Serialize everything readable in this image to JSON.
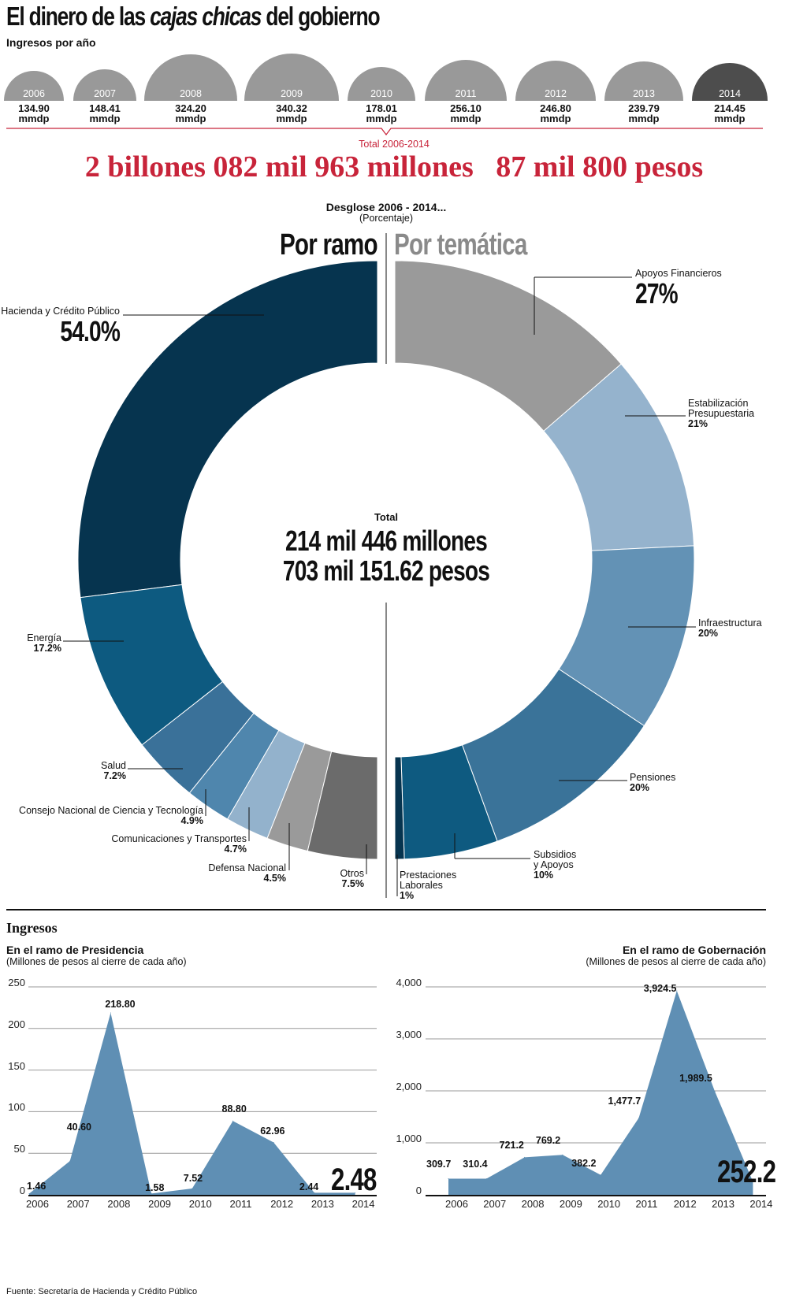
{
  "header": {
    "title_pre": "El dinero de las ",
    "title_em": "cajas chicas",
    "title_post": " del gobierno",
    "subtitle": "Ingresos por año"
  },
  "yearly": {
    "unit": "mmdp",
    "items": [
      {
        "year": "2006",
        "value": 134.9,
        "label": "134.90"
      },
      {
        "year": "2007",
        "value": 148.41,
        "label": "148.41"
      },
      {
        "year": "2008",
        "value": 324.2,
        "label": "324.20"
      },
      {
        "year": "2009",
        "value": 340.32,
        "label": "340.32"
      },
      {
        "year": "2010",
        "value": 178.01,
        "label": "178.01"
      },
      {
        "year": "2011",
        "value": 256.1,
        "label": "256.10"
      },
      {
        "year": "2012",
        "value": 246.8,
        "label": "246.80"
      },
      {
        "year": "2013",
        "value": 239.79,
        "label": "239.79"
      },
      {
        "year": "2014",
        "value": 214.45,
        "label": "214.45"
      }
    ],
    "color": "#999999",
    "highlight_color": "#4d4d4d",
    "total_label": "Total 2006-2014",
    "total_value": "2 billones 082 mil 963 millones   87 mil 800 pesos",
    "accent": "#c8243a"
  },
  "chart_data": [
    {
      "type": "pie",
      "title": "Desglose 2006 - 2014...",
      "subtitle": "(Porcentaje)",
      "left_title": "Por ramo",
      "right_title": "Por temática",
      "center": {
        "label": "Total",
        "line1": "214 mil 446 millones",
        "line2": "703 mil 151.62 pesos"
      },
      "por_ramo": [
        {
          "name": "Hacienda y Crédito Público",
          "value": 54.0,
          "label": "54.0%",
          "color": "#06344f"
        },
        {
          "name": "Energía",
          "value": 17.2,
          "label": "17.2%",
          "color": "#0d5a80"
        },
        {
          "name": "Salud",
          "value": 7.2,
          "label": "7.2%",
          "color": "#3a7199"
        },
        {
          "name": "Consejo Nacional de Ciencia y Tecnología",
          "value": 4.9,
          "label": "4.9%",
          "color": "#4f86ad"
        },
        {
          "name": "Comunicaciones y Transportes",
          "value": 4.7,
          "label": "4.7%",
          "color": "#93b2cc"
        },
        {
          "name": "Defensa Nacional",
          "value": 4.5,
          "label": "4.5%",
          "color": "#9a9a9a"
        },
        {
          "name": "Otros",
          "value": 7.5,
          "label": "7.5%",
          "color": "#6b6b6b"
        }
      ],
      "por_tematica": [
        {
          "name": "Apoyos Financieros",
          "value": 27,
          "label": "27%",
          "color": "#9a9a9a"
        },
        {
          "name": "Estabilización Presupuestaria",
          "name1": "Estabilización",
          "name2": "Presupuestaria",
          "value": 21,
          "label": "21%",
          "color": "#95b3cd"
        },
        {
          "name": "Infraestructura",
          "value": 20,
          "label": "20%",
          "color": "#6392b5"
        },
        {
          "name": "Pensiones",
          "value": 20,
          "label": "20%",
          "color": "#3a7399"
        },
        {
          "name": "Subsidios y Apoyos",
          "name1": "Subsidios",
          "name2": "y Apoyos",
          "value": 10,
          "label": "10%",
          "color": "#0e5a80"
        },
        {
          "name": "Prestaciones Laborales",
          "name1": "Prestaciones",
          "name2": "Laborales",
          "value": 1,
          "label": "1%",
          "color": "#06344f"
        }
      ]
    },
    {
      "type": "area",
      "section": "Ingresos",
      "title": "En el ramo de Presidencia",
      "subtitle": "(Millones de pesos al cierre de cada año)",
      "x": [
        "2006",
        "2007",
        "2008",
        "2009",
        "2010",
        "2011",
        "2012",
        "2013",
        "2014"
      ],
      "values": [
        1.46,
        40.6,
        218.8,
        1.58,
        7.52,
        88.8,
        62.96,
        2.44,
        2.48
      ],
      "labels": [
        "1.46",
        "40.60",
        "218.80",
        "1.58",
        "7.52",
        "88.80",
        "62.96",
        "2.44",
        "2.48"
      ],
      "yticks": [
        "0",
        "50",
        "100",
        "150",
        "200",
        "250"
      ],
      "ylim": [
        0,
        250
      ],
      "grid": true,
      "color": "#5f8fb4"
    },
    {
      "type": "area",
      "title": "En el ramo de Gobernación",
      "subtitle": "(Millones de pesos al cierre de cada año)",
      "x": [
        "2006",
        "2007",
        "2008",
        "2009",
        "2010",
        "2011",
        "2012",
        "2013",
        "2014"
      ],
      "values": [
        309.7,
        310.4,
        721.2,
        769.2,
        382.2,
        1477.7,
        3924.5,
        1989.5,
        252.2
      ],
      "labels": [
        "309.7",
        "310.4",
        "721.2",
        "769.2",
        "382.2",
        "1,477.7",
        "3,924.5",
        "1,989.5",
        "252.2"
      ],
      "yticks": [
        "0",
        "1,000",
        "2,000",
        "3,000",
        "4,000"
      ],
      "ylim": [
        0,
        4000
      ],
      "grid": true,
      "color": "#5f8fb4"
    }
  ],
  "footer": {
    "source": "Fuente: Secretaría de Hacienda y Crédito Público"
  }
}
